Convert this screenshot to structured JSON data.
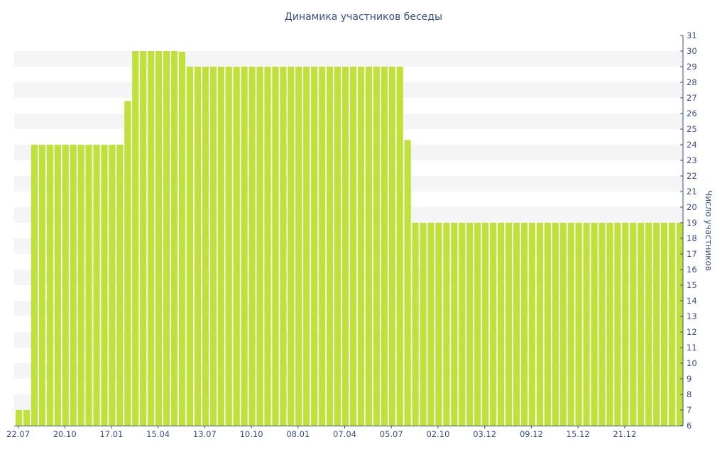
{
  "colors": {
    "bar": "#c0e03c",
    "text": "#3a4f8a",
    "band": "#f5f5f5",
    "axis": "#3a4f8a"
  },
  "chart_data": {
    "type": "bar",
    "title": "Динамика участников беседы",
    "xlabel": "",
    "ylabel": "Число участников",
    "y_axis_position": "right",
    "ylim": [
      6,
      31
    ],
    "yticks": [
      6,
      7,
      8,
      9,
      10,
      11,
      12,
      13,
      14,
      15,
      16,
      17,
      18,
      19,
      20,
      21,
      22,
      23,
      24,
      25,
      26,
      27,
      28,
      29,
      30,
      31
    ],
    "grid": "alternating horizontal bands",
    "xtick_labels": [
      {
        "label": "22.07",
        "index": 0
      },
      {
        "label": "20.10",
        "index": 6
      },
      {
        "label": "17.01",
        "index": 12
      },
      {
        "label": "15.04",
        "index": 18
      },
      {
        "label": "13.07",
        "index": 24
      },
      {
        "label": "10.10",
        "index": 30
      },
      {
        "label": "08.01",
        "index": 36
      },
      {
        "label": "07.04",
        "index": 42
      },
      {
        "label": "05.07",
        "index": 48
      },
      {
        "label": "02.10",
        "index": 54
      },
      {
        "label": "03.12",
        "index": 60
      },
      {
        "label": "09.12",
        "index": 66
      },
      {
        "label": "15.12",
        "index": 72
      },
      {
        "label": "21.12",
        "index": 78
      }
    ],
    "values": [
      7,
      7,
      24,
      24,
      24,
      24,
      24,
      24,
      24,
      24,
      24,
      24,
      24,
      24,
      26.8,
      30,
      30,
      30,
      30,
      30,
      30,
      29.95,
      29,
      29,
      29,
      29,
      29,
      29,
      29,
      29,
      29,
      29,
      29,
      29,
      29,
      29,
      29,
      29,
      29,
      29,
      29,
      29,
      29,
      29,
      29,
      29,
      29,
      29,
      29,
      29,
      24.3,
      19,
      19,
      19,
      19,
      19,
      19,
      19,
      19,
      19,
      19,
      19,
      19,
      19,
      19,
      19,
      19,
      19,
      19,
      19,
      19,
      19,
      19,
      19,
      19,
      19,
      19,
      19,
      19,
      19,
      19,
      19,
      19,
      19,
      19,
      19
    ]
  }
}
